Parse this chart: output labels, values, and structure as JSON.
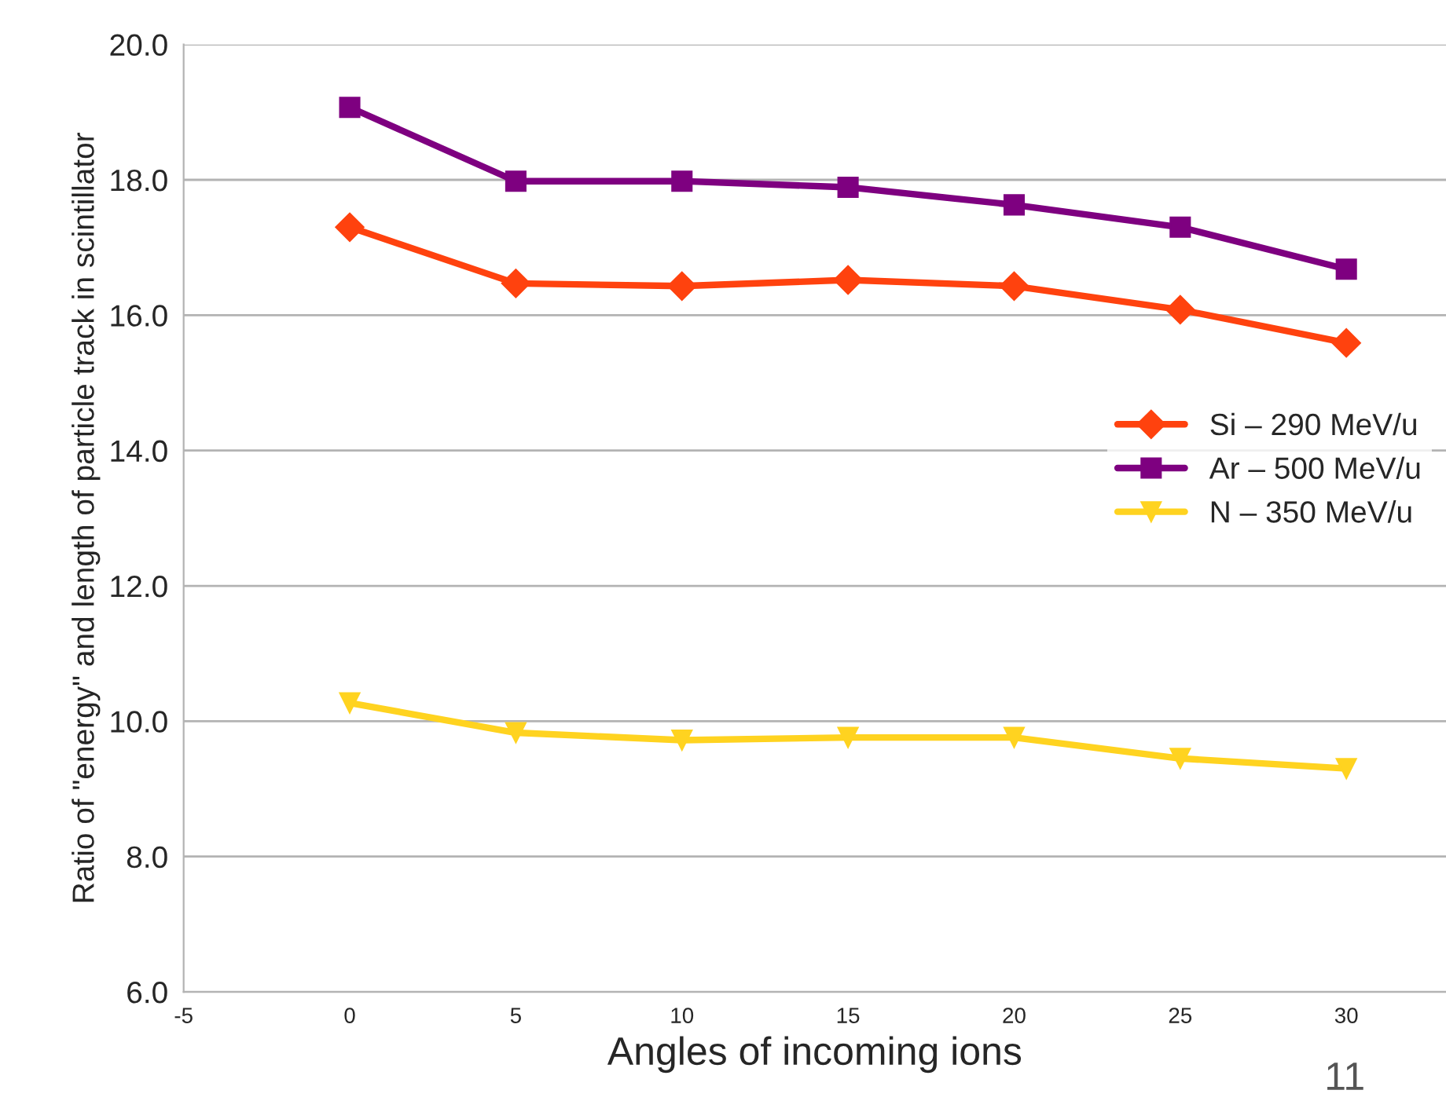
{
  "chart_data": {
    "type": "line",
    "xlabel": "Angles of incoming ions",
    "ylabel": "Ratio of \"energy\" and length of particle track in scintillator",
    "x": [
      0,
      5,
      10,
      15,
      20,
      25,
      30
    ],
    "series": [
      {
        "name": "Si – 290 MeV/u",
        "color": "#ff420e",
        "marker": "diamond",
        "values": [
          17.3,
          16.47,
          16.43,
          16.52,
          16.43,
          16.08,
          15.59
        ]
      },
      {
        "name": "Ar – 500 MeV/u",
        "color": "#7e0080",
        "marker": "square",
        "values": [
          19.07,
          17.98,
          17.98,
          17.89,
          17.63,
          17.3,
          16.68
        ]
      },
      {
        "name": "N – 350 MeV/u",
        "color": "#ffd320",
        "marker": "triangle",
        "values": [
          10.27,
          9.83,
          9.72,
          9.76,
          9.76,
          9.45,
          9.3
        ]
      }
    ],
    "xlim": [
      -5,
      33
    ],
    "xticks": [
      -5,
      0,
      5,
      10,
      15,
      20,
      25,
      30
    ],
    "ylim": [
      6,
      20
    ],
    "yticks": [
      {
        "value": 6,
        "label": "6.0"
      },
      {
        "value": 8,
        "label": "8.0"
      },
      {
        "value": 10,
        "label": "10.0"
      },
      {
        "value": 12,
        "label": "12.0"
      },
      {
        "value": 14,
        "label": "14.0"
      },
      {
        "value": 16,
        "label": "16.0"
      },
      {
        "value": 18,
        "label": "18.0"
      },
      {
        "value": 20,
        "label": "20.0"
      }
    ],
    "grid": "y",
    "legend": "right",
    "line_style": "solid",
    "annotations": [
      "11"
    ]
  }
}
